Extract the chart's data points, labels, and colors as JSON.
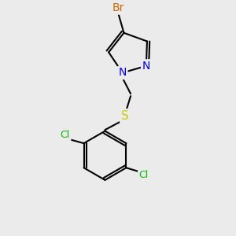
{
  "background_color": "#ebebeb",
  "bond_color": "#000000",
  "bond_width": 1.5,
  "atom_colors": {
    "Br": "#cc6600",
    "N": "#0000ff",
    "S": "#cccc00",
    "Cl": "#00bb00",
    "C": "#000000"
  },
  "font_size": 9,
  "figsize": [
    3.0,
    3.0
  ],
  "dpi": 100
}
